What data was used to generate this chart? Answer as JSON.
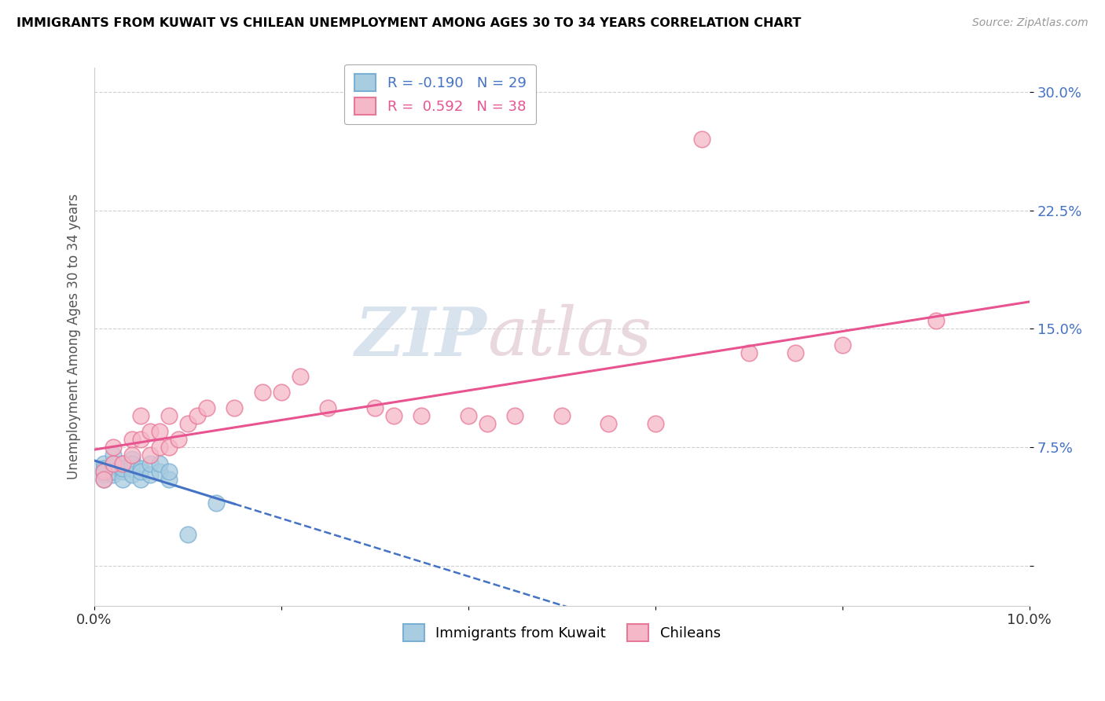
{
  "title": "IMMIGRANTS FROM KUWAIT VS CHILEAN UNEMPLOYMENT AMONG AGES 30 TO 34 YEARS CORRELATION CHART",
  "source": "Source: ZipAtlas.com",
  "ylabel": "Unemployment Among Ages 30 to 34 years",
  "xlim": [
    0.0,
    0.1
  ],
  "ylim": [
    -0.025,
    0.315
  ],
  "yticks": [
    0.0,
    0.075,
    0.15,
    0.225,
    0.3
  ],
  "ytick_labels": [
    "",
    "7.5%",
    "15.0%",
    "22.5%",
    "30.0%"
  ],
  "kuwait_color": "#a8cce0",
  "kuwait_edge_color": "#7ab0d4",
  "chilean_color": "#f5b8c8",
  "chilean_edge_color": "#e87898",
  "kuwait_line_color": "#4472c4",
  "chilean_line_color": "#e85490",
  "kuwait_R": -0.19,
  "kuwait_N": 29,
  "chilean_R": 0.592,
  "chilean_N": 38,
  "kuwait_x": [
    0.001,
    0.001,
    0.001,
    0.001,
    0.001,
    0.002,
    0.002,
    0.002,
    0.002,
    0.002,
    0.003,
    0.003,
    0.003,
    0.003,
    0.004,
    0.004,
    0.004,
    0.004,
    0.005,
    0.005,
    0.005,
    0.006,
    0.006,
    0.007,
    0.007,
    0.008,
    0.008,
    0.01,
    0.013
  ],
  "kuwait_y": [
    0.065,
    0.058,
    0.055,
    0.062,
    0.06,
    0.07,
    0.063,
    0.058,
    0.065,
    0.06,
    0.065,
    0.06,
    0.055,
    0.062,
    0.068,
    0.062,
    0.058,
    0.065,
    0.062,
    0.055,
    0.06,
    0.058,
    0.065,
    0.06,
    0.065,
    0.055,
    0.06,
    0.02,
    0.04
  ],
  "chilean_x": [
    0.001,
    0.001,
    0.002,
    0.002,
    0.003,
    0.004,
    0.004,
    0.005,
    0.005,
    0.006,
    0.006,
    0.007,
    0.007,
    0.008,
    0.008,
    0.009,
    0.01,
    0.011,
    0.012,
    0.015,
    0.018,
    0.02,
    0.022,
    0.025,
    0.03,
    0.032,
    0.035,
    0.04,
    0.042,
    0.045,
    0.05,
    0.055,
    0.06,
    0.065,
    0.07,
    0.075,
    0.08,
    0.09
  ],
  "chilean_y": [
    0.06,
    0.055,
    0.065,
    0.075,
    0.065,
    0.08,
    0.07,
    0.08,
    0.095,
    0.07,
    0.085,
    0.075,
    0.085,
    0.075,
    0.095,
    0.08,
    0.09,
    0.095,
    0.1,
    0.1,
    0.11,
    0.11,
    0.12,
    0.1,
    0.1,
    0.095,
    0.095,
    0.095,
    0.09,
    0.095,
    0.095,
    0.09,
    0.09,
    0.27,
    0.135,
    0.135,
    0.14,
    0.155
  ],
  "background_color": "#ffffff",
  "grid_color": "#d0d0d0",
  "watermark_zip": "ZIP",
  "watermark_atlas": "atlas",
  "watermark_color_zip": "#d0dce8",
  "watermark_color_atlas": "#d8c8d0"
}
